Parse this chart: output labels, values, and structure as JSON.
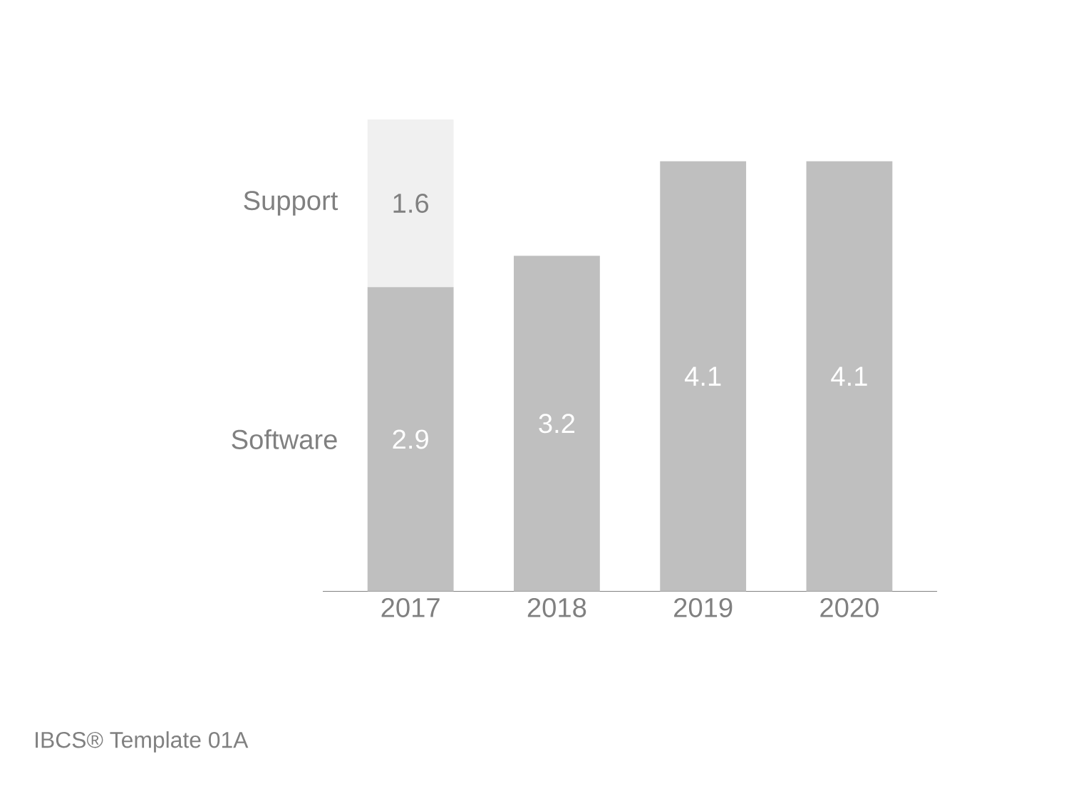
{
  "chart_data": {
    "type": "bar",
    "stacked": true,
    "data_labels": true,
    "categories": [
      "2017",
      "2018",
      "2019",
      "2020"
    ],
    "series": [
      {
        "name": "Software",
        "color": "#bfbfbf",
        "values": [
          2.9,
          3.2,
          4.1,
          4.1
        ]
      },
      {
        "name": "Support",
        "color": "#f0f0f0",
        "values": [
          1.6,
          null,
          null,
          null
        ]
      }
    ],
    "annotations": [
      "IBCS® Template 01A"
    ]
  }
}
